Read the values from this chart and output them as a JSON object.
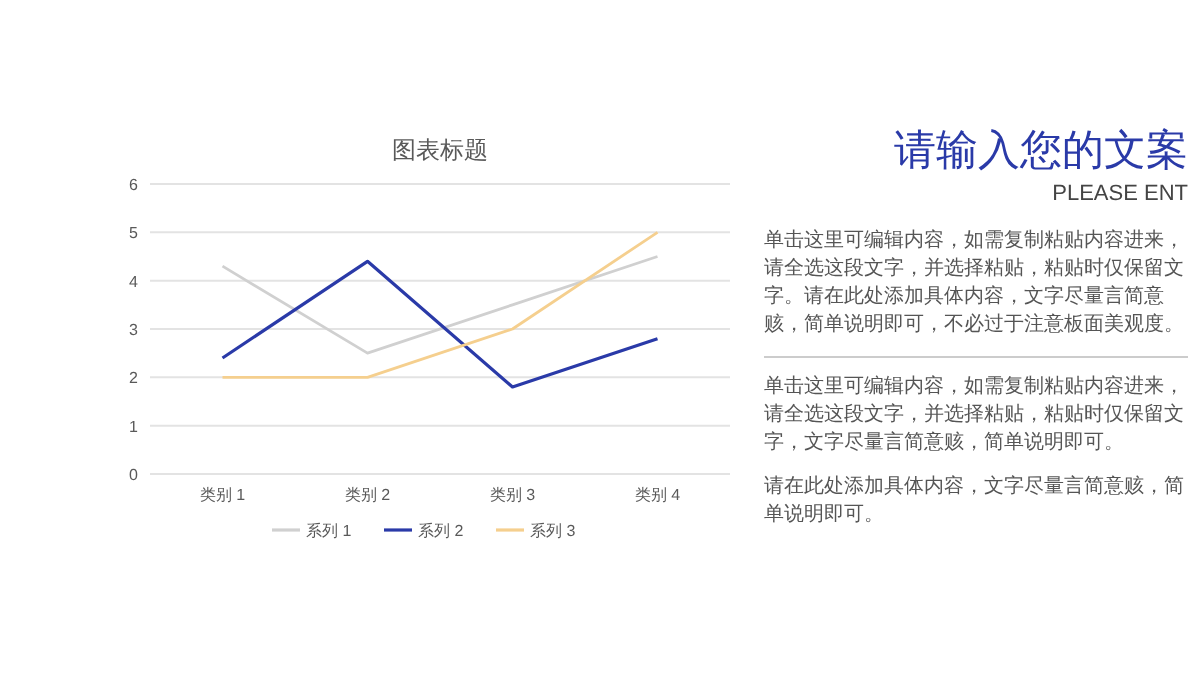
{
  "chart_data": {
    "type": "line",
    "title": "图表标题",
    "categories": [
      "类别 1",
      "类别 2",
      "类别 3",
      "类别 4"
    ],
    "series": [
      {
        "name": "系列 1",
        "color": "#d0d0d0",
        "values": [
          4.3,
          2.5,
          3.5,
          4.5
        ]
      },
      {
        "name": "系列 2",
        "color": "#2a3aa8",
        "values": [
          2.4,
          4.4,
          1.8,
          2.8
        ]
      },
      {
        "name": "系列 3",
        "color": "#f5cf8e",
        "values": [
          2,
          2,
          3,
          5
        ]
      }
    ],
    "ylim": [
      0,
      6
    ],
    "yticks": [
      0,
      1,
      2,
      3,
      4,
      5,
      6
    ],
    "grid": "y",
    "legend": "bottom",
    "marker": "none",
    "line_style": "solid",
    "annotations": [
      "请输入您的文案",
      "PLEASE ENT",
      "单击这里可编辑内容，如需复制粘贴内容进来，请全选这段文字，并选择粘贴，粘贴时仅保留文字。请在此处添加具体内容，文字尽量言简意赅，简单说明即可，不必过于注意板面美观度。",
      "单击这里可编辑内容，如需复制粘贴内容进来，请全选这段文字，并选择粘贴，粘贴时仅保留文字，文字尽量言简意赅，简单说明即可。",
      "请在此处添加具体内容，文字尽量言简意赅，简单说明即可。"
    ]
  }
}
